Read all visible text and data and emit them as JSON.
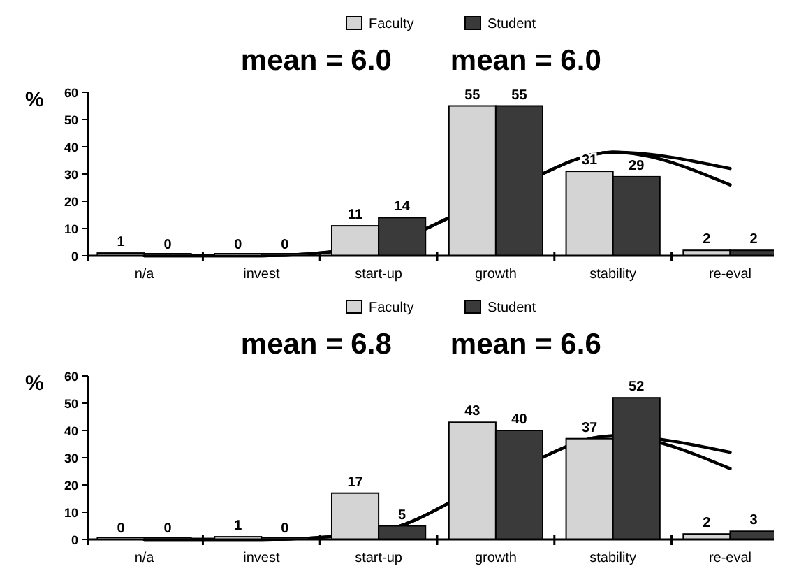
{
  "chart_data": [
    {
      "type": "bar",
      "ylabel": "%",
      "annotations": [
        "mean = 6.0",
        "mean = 6.0"
      ],
      "categories": [
        "n/a",
        "invest",
        "start-up",
        "growth",
        "stability",
        "re-eval"
      ],
      "series": [
        {
          "name": "Faculty",
          "color": "#d4d4d4",
          "values": [
            1,
            0,
            11,
            55,
            31,
            2
          ],
          "value_labels": [
            "1",
            "0",
            "11",
            "55",
            "31",
            "2"
          ]
        },
        {
          "name": "Student",
          "color": "#3a3a3a",
          "values": [
            0,
            0,
            14,
            55,
            29,
            2
          ],
          "value_labels": [
            "0",
            "0",
            "14",
            "55",
            "29",
            "2"
          ]
        },
        {
          "type": "line",
          "color": "#000000",
          "values": [
            0,
            0,
            4,
            22,
            38,
            32
          ]
        },
        {
          "type": "line",
          "color": "#000000",
          "values": [
            0,
            0,
            4,
            22,
            38,
            26
          ]
        }
      ],
      "ylim": [
        0,
        60
      ],
      "yticks": [
        0,
        10,
        20,
        30,
        40,
        50,
        60
      ],
      "legend": "top",
      "grid": false
    },
    {
      "type": "bar",
      "ylabel": "%",
      "annotations": [
        "mean = 6.8",
        "mean = 6.6"
      ],
      "categories": [
        "n/a",
        "invest",
        "start-up",
        "growth",
        "stability",
        "re-eval"
      ],
      "series": [
        {
          "name": "Faculty",
          "color": "#d4d4d4",
          "values": [
            0,
            1,
            17,
            43,
            37,
            2
          ],
          "value_labels": [
            "0",
            "1",
            "17",
            "43",
            "37",
            "2"
          ]
        },
        {
          "name": "Student",
          "color": "#3a3a3a",
          "values": [
            0,
            0,
            5,
            40,
            52,
            3
          ],
          "value_labels": [
            "0",
            "0",
            "5",
            "40",
            "52",
            "3"
          ]
        },
        {
          "type": "line",
          "color": "#000000",
          "values": [
            0,
            0,
            3,
            22,
            38,
            32
          ]
        },
        {
          "type": "line",
          "color": "#000000",
          "values": [
            0,
            0,
            3,
            22,
            38,
            26
          ]
        }
      ],
      "ylim": [
        0,
        60
      ],
      "yticks": [
        0,
        10,
        20,
        30,
        40,
        50,
        60
      ],
      "legend": "top",
      "grid": false
    }
  ]
}
